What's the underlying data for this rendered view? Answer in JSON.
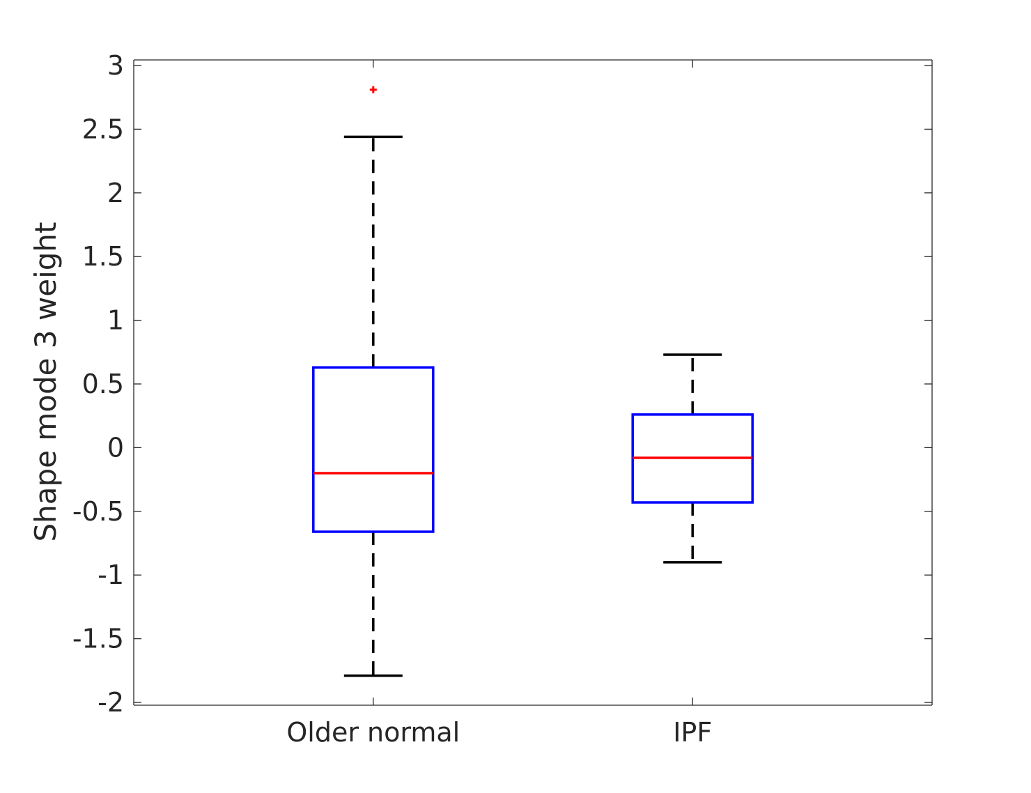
{
  "chart_data": {
    "type": "box",
    "title": "",
    "xlabel": "",
    "ylabel": "Shape mode 3 weight",
    "ylim": [
      -2,
      3
    ],
    "yticks": [
      "3",
      "2.5",
      "2",
      "1.5",
      "1",
      "0.5",
      "0",
      "-0.5",
      "-1",
      "-1.5",
      "-2"
    ],
    "ytick_values": [
      3,
      2.5,
      2,
      1.5,
      1,
      0.5,
      0,
      -0.5,
      -1,
      -1.5,
      -2
    ],
    "grid": false,
    "categories": [
      "Older normal",
      "IPF"
    ],
    "boxes": [
      {
        "category": "Older normal",
        "whisker_low": -1.79,
        "q1": -0.66,
        "median": -0.2,
        "q3": 0.63,
        "whisker_high": 2.44,
        "outliers": [
          2.81
        ]
      },
      {
        "category": "IPF",
        "whisker_low": -0.9,
        "q1": -0.43,
        "median": -0.08,
        "q3": 0.26,
        "whisker_high": 0.73,
        "outliers": []
      }
    ],
    "colors": {
      "box": "#0000ff",
      "median": "#ff0000",
      "whisker": "#000000",
      "outlier": "#ff0000",
      "axis": "#262626"
    }
  }
}
